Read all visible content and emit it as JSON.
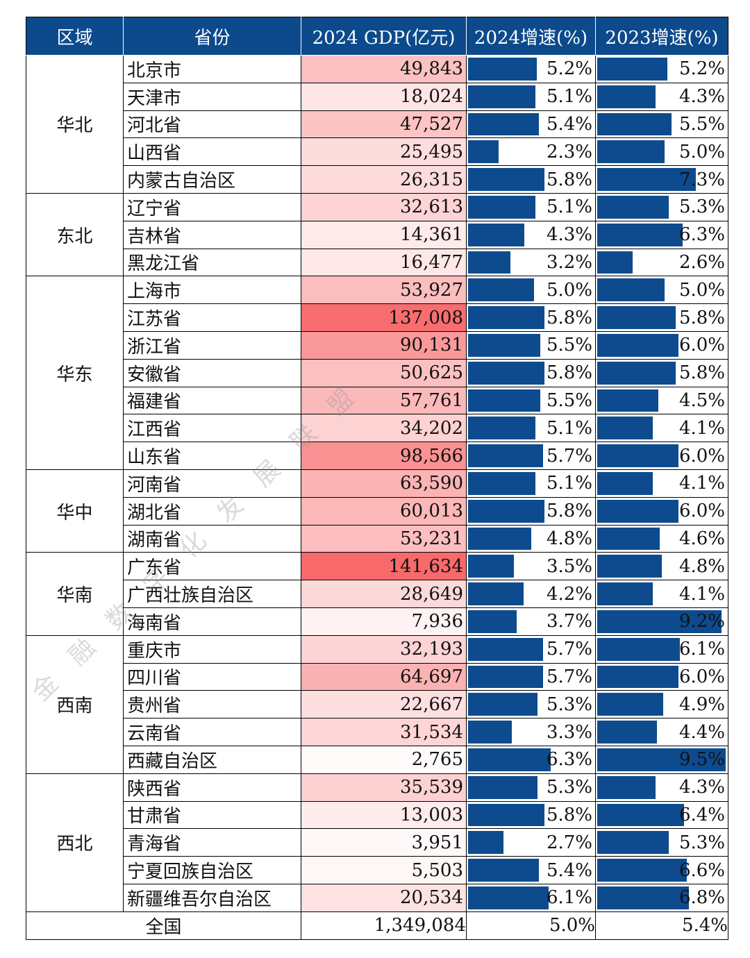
{
  "headers": {
    "region": "区域",
    "province": "省份",
    "gdp": "2024 GDP(亿元)",
    "g2024": "2024增速(%)",
    "g2023": "2023增速(%)"
  },
  "bar_color": "#0d4b8e",
  "header_color": "#0c4a8c",
  "heat_color": "#f8696b",
  "rows": [
    {
      "region": "华北",
      "province": "北京市",
      "gdp": "49,843",
      "gdp_value": 49843,
      "g2024": "5.2%",
      "g2024_value": 5.2,
      "g2023": "5.2%",
      "g2023_value": 5.2
    },
    {
      "region": "华北",
      "province": "天津市",
      "gdp": "18,024",
      "gdp_value": 18024,
      "g2024": "5.1%",
      "g2024_value": 5.1,
      "g2023": "4.3%",
      "g2023_value": 4.3
    },
    {
      "region": "华北",
      "province": "河北省",
      "gdp": "47,527",
      "gdp_value": 47527,
      "g2024": "5.4%",
      "g2024_value": 5.4,
      "g2023": "5.5%",
      "g2023_value": 5.5
    },
    {
      "region": "华北",
      "province": "山西省",
      "gdp": "25,495",
      "gdp_value": 25495,
      "g2024": "2.3%",
      "g2024_value": 2.3,
      "g2023": "5.0%",
      "g2023_value": 5.0
    },
    {
      "region": "华北",
      "province": "内蒙古自治区",
      "gdp": "26,315",
      "gdp_value": 26315,
      "g2024": "5.8%",
      "g2024_value": 5.8,
      "g2023": "7.3%",
      "g2023_value": 7.3
    },
    {
      "region": "东北",
      "province": "辽宁省",
      "gdp": "32,613",
      "gdp_value": 32613,
      "g2024": "5.1%",
      "g2024_value": 5.1,
      "g2023": "5.3%",
      "g2023_value": 5.3
    },
    {
      "region": "东北",
      "province": "吉林省",
      "gdp": "14,361",
      "gdp_value": 14361,
      "g2024": "4.3%",
      "g2024_value": 4.3,
      "g2023": "6.3%",
      "g2023_value": 6.3
    },
    {
      "region": "东北",
      "province": "黑龙江省",
      "gdp": "16,477",
      "gdp_value": 16477,
      "g2024": "3.2%",
      "g2024_value": 3.2,
      "g2023": "2.6%",
      "g2023_value": 2.6
    },
    {
      "region": "华东",
      "province": "上海市",
      "gdp": "53,927",
      "gdp_value": 53927,
      "g2024": "5.0%",
      "g2024_value": 5.0,
      "g2023": "5.0%",
      "g2023_value": 5.0
    },
    {
      "region": "华东",
      "province": "江苏省",
      "gdp": "137,008",
      "gdp_value": 137008,
      "g2024": "5.8%",
      "g2024_value": 5.8,
      "g2023": "5.8%",
      "g2023_value": 5.8
    },
    {
      "region": "华东",
      "province": "浙江省",
      "gdp": "90,131",
      "gdp_value": 90131,
      "g2024": "5.5%",
      "g2024_value": 5.5,
      "g2023": "6.0%",
      "g2023_value": 6.0
    },
    {
      "region": "华东",
      "province": "安徽省",
      "gdp": "50,625",
      "gdp_value": 50625,
      "g2024": "5.8%",
      "g2024_value": 5.8,
      "g2023": "5.8%",
      "g2023_value": 5.8
    },
    {
      "region": "华东",
      "province": "福建省",
      "gdp": "57,761",
      "gdp_value": 57761,
      "g2024": "5.5%",
      "g2024_value": 5.5,
      "g2023": "4.5%",
      "g2023_value": 4.5
    },
    {
      "region": "华东",
      "province": "江西省",
      "gdp": "34,202",
      "gdp_value": 34202,
      "g2024": "5.1%",
      "g2024_value": 5.1,
      "g2023": "4.1%",
      "g2023_value": 4.1
    },
    {
      "region": "华东",
      "province": "山东省",
      "gdp": "98,566",
      "gdp_value": 98566,
      "g2024": "5.7%",
      "g2024_value": 5.7,
      "g2023": "6.0%",
      "g2023_value": 6.0
    },
    {
      "region": "华中",
      "province": "河南省",
      "gdp": "63,590",
      "gdp_value": 63590,
      "g2024": "5.1%",
      "g2024_value": 5.1,
      "g2023": "4.1%",
      "g2023_value": 4.1
    },
    {
      "region": "华中",
      "province": "湖北省",
      "gdp": "60,013",
      "gdp_value": 60013,
      "g2024": "5.8%",
      "g2024_value": 5.8,
      "g2023": "6.0%",
      "g2023_value": 6.0
    },
    {
      "region": "华中",
      "province": "湖南省",
      "gdp": "53,231",
      "gdp_value": 53231,
      "g2024": "4.8%",
      "g2024_value": 4.8,
      "g2023": "4.6%",
      "g2023_value": 4.6
    },
    {
      "region": "华南",
      "province": "广东省",
      "gdp": "141,634",
      "gdp_value": 141634,
      "g2024": "3.5%",
      "g2024_value": 3.5,
      "g2023": "4.8%",
      "g2023_value": 4.8
    },
    {
      "region": "华南",
      "province": "广西壮族自治区",
      "gdp": "28,649",
      "gdp_value": 28649,
      "g2024": "4.2%",
      "g2024_value": 4.2,
      "g2023": "4.1%",
      "g2023_value": 4.1
    },
    {
      "region": "华南",
      "province": "海南省",
      "gdp": "7,936",
      "gdp_value": 7936,
      "g2024": "3.7%",
      "g2024_value": 3.7,
      "g2023": "9.2%",
      "g2023_value": 9.2
    },
    {
      "region": "西南",
      "province": "重庆市",
      "gdp": "32,193",
      "gdp_value": 32193,
      "g2024": "5.7%",
      "g2024_value": 5.7,
      "g2023": "6.1%",
      "g2023_value": 6.1
    },
    {
      "region": "西南",
      "province": "四川省",
      "gdp": "64,697",
      "gdp_value": 64697,
      "g2024": "5.7%",
      "g2024_value": 5.7,
      "g2023": "6.0%",
      "g2023_value": 6.0
    },
    {
      "region": "西南",
      "province": "贵州省",
      "gdp": "22,667",
      "gdp_value": 22667,
      "g2024": "5.3%",
      "g2024_value": 5.3,
      "g2023": "4.9%",
      "g2023_value": 4.9
    },
    {
      "region": "西南",
      "province": "云南省",
      "gdp": "31,534",
      "gdp_value": 31534,
      "g2024": "3.3%",
      "g2024_value": 3.3,
      "g2023": "4.4%",
      "g2023_value": 4.4
    },
    {
      "region": "西南",
      "province": "西藏自治区",
      "gdp": "2,765",
      "gdp_value": 2765,
      "g2024": "6.3%",
      "g2024_value": 6.3,
      "g2023": "9.5%",
      "g2023_value": 9.5
    },
    {
      "region": "西北",
      "province": "陕西省",
      "gdp": "35,539",
      "gdp_value": 35539,
      "g2024": "5.3%",
      "g2024_value": 5.3,
      "g2023": "4.3%",
      "g2023_value": 4.3
    },
    {
      "region": "西北",
      "province": "甘肃省",
      "gdp": "13,003",
      "gdp_value": 13003,
      "g2024": "5.8%",
      "g2024_value": 5.8,
      "g2023": "6.4%",
      "g2023_value": 6.4
    },
    {
      "region": "西北",
      "province": "青海省",
      "gdp": "3,951",
      "gdp_value": 3951,
      "g2024": "2.7%",
      "g2024_value": 2.7,
      "g2023": "5.3%",
      "g2023_value": 5.3
    },
    {
      "region": "西北",
      "province": "宁夏回族自治区",
      "gdp": "5,503",
      "gdp_value": 5503,
      "g2024": "5.4%",
      "g2024_value": 5.4,
      "g2023": "6.6%",
      "g2023_value": 6.6
    },
    {
      "region": "西北",
      "province": "新疆维吾尔自治区",
      "gdp": "20,534",
      "gdp_value": 20534,
      "g2024": "6.1%",
      "g2024_value": 6.1,
      "g2023": "6.8%",
      "g2023_value": 6.8
    }
  ],
  "total": {
    "label": "全国",
    "gdp": "1,349,084",
    "g2024": "5.0%",
    "g2023": "5.4%"
  },
  "watermark": "金融数字化发展联盟"
}
